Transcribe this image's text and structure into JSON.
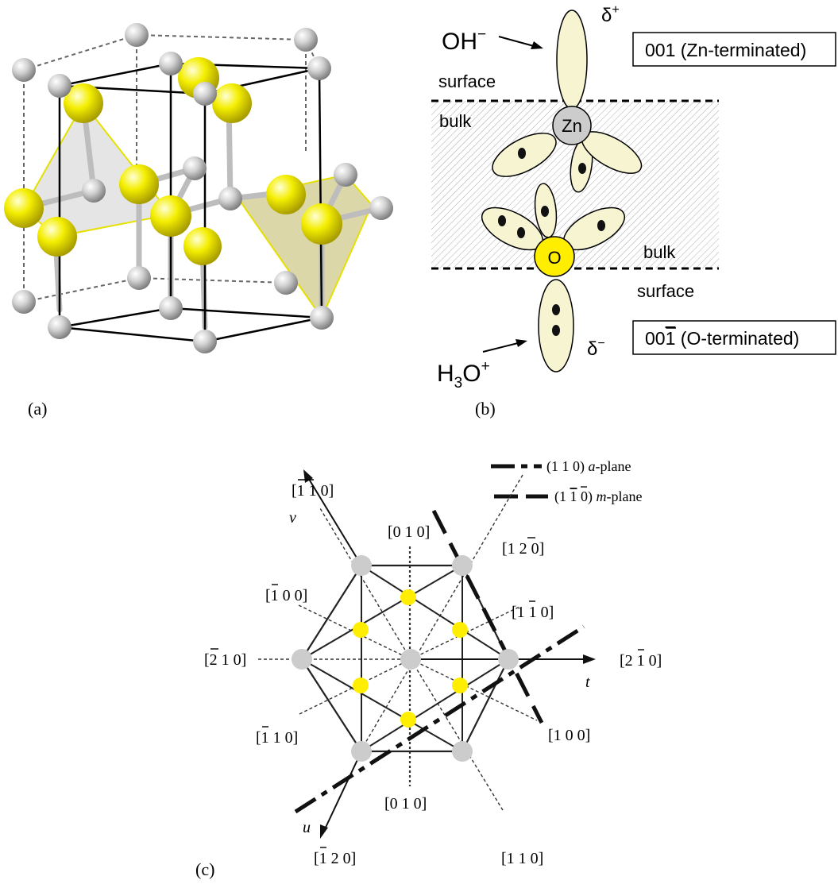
{
  "panel_a": {
    "caption": "(a)",
    "colors": {
      "zn": "#c8c8c8",
      "o": "#f2ee00",
      "bond": "#b8b8b8",
      "edge": "#000000"
    }
  },
  "panel_b": {
    "caption": "(b)",
    "top_ion": "OH",
    "top_ion_sup": "−",
    "bottom_ion_main": "H",
    "bottom_ion_sub": "3",
    "bottom_ion_end": "O",
    "bottom_ion_sup": "+",
    "delta_top": "δ",
    "delta_top_sup": "+",
    "delta_bottom": "δ",
    "delta_bottom_sup": "−",
    "surface_top": "surface",
    "bulk_left": "bulk",
    "bulk_right": "bulk",
    "surface_bottom": "surface",
    "zn_label": "Zn",
    "o_label": "O",
    "box_top": "001 (Zn-terminated)",
    "box_bottom_pre": "00",
    "box_bottom_bar": "1",
    "box_bottom_post": " (O-terminated)",
    "colors": {
      "lobe": "#f7f4d2",
      "zn": "#cccccc",
      "o": "#ffee00",
      "hatch": "#a9a9a9"
    }
  },
  "panel_c": {
    "caption": "(c)",
    "legend": [
      {
        "hkl": "(1 1 0) ",
        "name": "a",
        "suffix": "-plane",
        "style": "dash-dot"
      },
      {
        "hkl_pre": "(1 ",
        "hkl_bar": "1",
        "hkl_post": " 0) ",
        "name": "m",
        "suffix": "-plane",
        "style": "dash"
      }
    ],
    "axes": {
      "v": "v",
      "t": "t",
      "u": "u"
    },
    "directions": {
      "top_left": "[1 1 0]",
      "top_center": "[0 1 0]",
      "top_right": "[1 2 0]",
      "upper_left": "[1 0 0]",
      "upper_right": "[1 1 0]",
      "left": "[2 1 0]",
      "right": "[2 1 0]",
      "lower_left": "[1 1 0]",
      "lower_right": "[1 0 0]",
      "bottom_center": "[0 1 0]",
      "bottom_left": "[1 2 0]",
      "bottom_right": "[1 1 0]"
    },
    "colors": {
      "grey_atom": "#cccccc",
      "yellow_atom": "#ffee00"
    }
  }
}
